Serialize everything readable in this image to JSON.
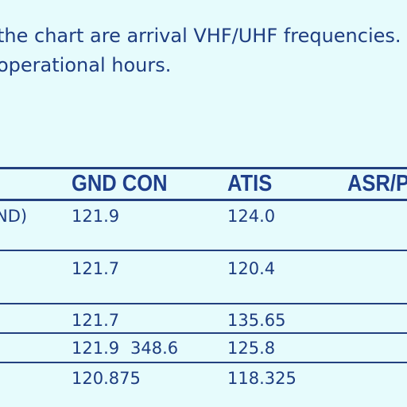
{
  "intro": {
    "line1": "the chart are arrival VHF/UHF frequencies. A",
    "line2": "operational hours."
  },
  "table": {
    "headers": {
      "gnd_con": "GND  CON",
      "atis": "ATIS",
      "asr": "ASR/P"
    },
    "rows": [
      {
        "name": "ND)",
        "gnd_con": "121.9",
        "extra": "",
        "atis": "124.0"
      },
      {
        "name": "",
        "gnd_con": "121.7",
        "extra": "",
        "atis": "120.4"
      },
      {
        "name": "",
        "gnd_con": "121.7",
        "extra": "",
        "atis": "135.65"
      },
      {
        "name": "",
        "gnd_con": "121.9",
        "extra": "348.6",
        "atis": "125.8"
      },
      {
        "name": "",
        "gnd_con": "120.875",
        "extra": "",
        "atis": "118.325"
      }
    ]
  },
  "colors": {
    "background": "#e6fbfc",
    "text": "#1d3c7f",
    "rule": "#23407f"
  }
}
